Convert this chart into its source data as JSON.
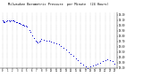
{
  "title": "Milwaukee Barometric Pressure  per Minute  (24 Hours)",
  "bg_color": "#ffffff",
  "plot_bg_color": "#ffffff",
  "dot_color": "#0000cc",
  "grid_color": "#999999",
  "text_color": "#000000",
  "x_ticks": [
    0,
    1,
    2,
    3,
    4,
    5,
    6,
    7,
    8,
    9,
    10,
    11,
    12,
    13,
    14,
    15,
    16,
    17,
    18,
    19,
    20,
    21,
    22,
    23
  ],
  "y_min": 29.2,
  "y_max": 30.25,
  "y_ticks": [
    29.2,
    29.3,
    29.4,
    29.5,
    29.6,
    29.7,
    29.8,
    29.9,
    30.0,
    30.1,
    30.2
  ],
  "data_x": [
    0.0,
    0.08,
    0.17,
    0.25,
    0.5,
    0.75,
    1.0,
    1.25,
    1.5,
    1.75,
    2.0,
    2.25,
    2.5,
    2.75,
    3.0,
    3.25,
    3.5,
    3.75,
    4.0,
    4.25,
    4.5,
    4.75,
    5.0,
    5.5,
    5.75,
    6.0,
    6.5,
    6.75,
    7.0,
    7.25,
    7.5,
    7.75,
    8.0,
    8.5,
    9.0,
    9.5,
    10.0,
    10.5,
    11.0,
    11.5,
    12.0,
    12.5,
    13.0,
    13.5,
    14.0,
    14.5,
    15.0,
    15.5,
    16.0,
    16.5,
    17.0,
    17.5,
    18.0,
    18.5,
    19.0,
    19.5,
    20.0,
    20.5,
    21.0,
    21.5,
    22.0,
    22.5,
    23.0
  ],
  "data_y": [
    30.1,
    30.09,
    30.08,
    30.07,
    30.06,
    30.08,
    30.1,
    30.09,
    30.08,
    30.09,
    30.1,
    30.09,
    30.08,
    30.07,
    30.06,
    30.05,
    30.04,
    30.03,
    30.02,
    30.01,
    30.0,
    29.99,
    29.98,
    29.92,
    29.88,
    29.82,
    29.76,
    29.72,
    29.7,
    29.68,
    29.7,
    29.72,
    29.74,
    29.73,
    29.72,
    29.71,
    29.7,
    29.68,
    29.66,
    29.64,
    29.62,
    29.58,
    29.54,
    29.5,
    29.46,
    29.42,
    29.38,
    29.34,
    29.3,
    29.26,
    29.22,
    29.2,
    29.22,
    29.24,
    29.26,
    29.28,
    29.3,
    29.32,
    29.34,
    29.36,
    29.35,
    29.32,
    29.28
  ]
}
